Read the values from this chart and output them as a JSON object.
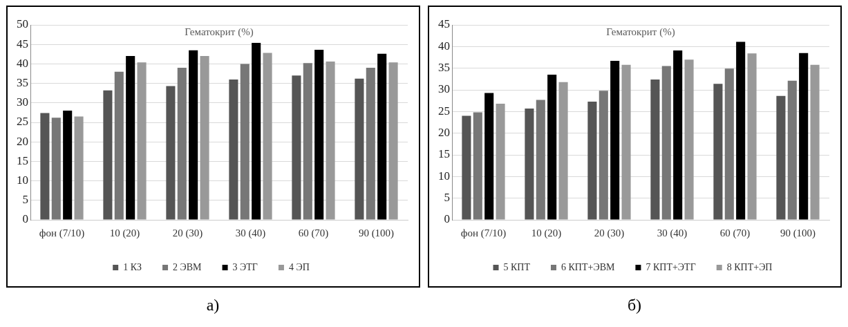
{
  "chart_data": [
    {
      "type": "bar",
      "title": "Гематокрит (%)",
      "categories": [
        "фон (7/10)",
        "10 (20)",
        "20 (30)",
        "30 (40)",
        "60 (70)",
        "90 (100)"
      ],
      "series": [
        {
          "name": "1 КЗ",
          "color": "#555555",
          "values": [
            27.4,
            33.2,
            34.3,
            36,
            37,
            36.2
          ]
        },
        {
          "name": "2 ЭВМ",
          "color": "#777777",
          "values": [
            26.2,
            38,
            39,
            40,
            40.2,
            39
          ]
        },
        {
          "name": "3 ЭТГ",
          "color": "#000000",
          "values": [
            28,
            42,
            43.5,
            45.4,
            43.6,
            42.6
          ]
        },
        {
          "name": "4 ЭП",
          "color": "#999999",
          "values": [
            26.5,
            40.4,
            42,
            42.8,
            40.6,
            40.4
          ]
        }
      ],
      "ylim": [
        0,
        50
      ],
      "yticks": [
        0,
        5,
        10,
        15,
        20,
        25,
        30,
        35,
        40,
        45,
        50
      ],
      "grid": "y",
      "legend": "bottom",
      "annotations": [
        "а)"
      ]
    },
    {
      "type": "bar",
      "title": "Гематокрит (%)",
      "categories": [
        "фон (7/10)",
        "10 (20)",
        "20 (30)",
        "30 (40)",
        "60 (70)",
        "90 (100)"
      ],
      "series": [
        {
          "name": "5 КПТ",
          "color": "#555555",
          "values": [
            24,
            25.7,
            27.3,
            32.4,
            31.4,
            28.6
          ]
        },
        {
          "name": "6 КПТ+ЭВМ",
          "color": "#777777",
          "values": [
            24.8,
            27.7,
            29.8,
            35.5,
            34.9,
            32.1
          ]
        },
        {
          "name": "7 КПТ+ЭТГ",
          "color": "#000000",
          "values": [
            29.3,
            33.5,
            36.7,
            39.1,
            41.1,
            38.5
          ]
        },
        {
          "name": "8 КПТ+ЭП",
          "color": "#999999",
          "values": [
            26.8,
            31.8,
            35.8,
            37,
            38.4,
            35.8
          ]
        }
      ],
      "ylim": [
        0,
        45
      ],
      "yticks": [
        0,
        5,
        10,
        15,
        20,
        25,
        30,
        35,
        40,
        45
      ],
      "grid": "y",
      "legend": "bottom",
      "annotations": [
        "б)"
      ]
    }
  ]
}
